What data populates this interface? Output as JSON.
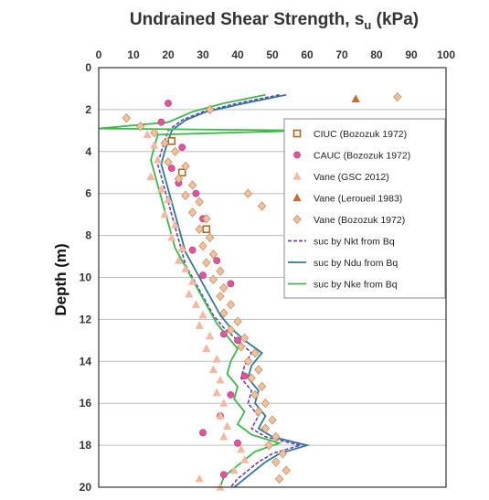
{
  "chart_data": {
    "type": "scatter",
    "title": "Undrained Shear Strength, s",
    "title_sub": "u",
    "title_unit": " (kPa)",
    "ylabel": "Depth (m)",
    "x_ticks": [
      0,
      10,
      20,
      30,
      40,
      50,
      60,
      70,
      80,
      90,
      100
    ],
    "y_ticks": [
      0,
      2,
      4,
      6,
      8,
      10,
      12,
      14,
      16,
      18,
      20
    ],
    "xlim": [
      0,
      100
    ],
    "ylim": [
      0,
      20
    ],
    "y_inverted": true,
    "x_axis_position": "top",
    "grid": "horizontal",
    "legend_position": "right",
    "series": [
      {
        "name": "CIUC (Bozozuk 1972)",
        "marker": "square-open",
        "color": "#b5651d",
        "points": [
          [
            21,
            3.5
          ],
          [
            24,
            5.0
          ],
          [
            31,
            7.7
          ]
        ]
      },
      {
        "name": "CAUC (Bozozuk 1972)",
        "marker": "circle",
        "color": "#e0559a",
        "points": [
          [
            20,
            1.7
          ],
          [
            18,
            2.6
          ],
          [
            24,
            3.8
          ],
          [
            21,
            4.8
          ],
          [
            23,
            5.5
          ],
          [
            28,
            6.0
          ],
          [
            30,
            7.2
          ],
          [
            27,
            8.7
          ],
          [
            34,
            9.2
          ],
          [
            30,
            9.9
          ],
          [
            38,
            10.3
          ],
          [
            36,
            12.7
          ],
          [
            40,
            13.0
          ],
          [
            38,
            15.6
          ],
          [
            42,
            14.7
          ],
          [
            35,
            16.6
          ],
          [
            30,
            17.4
          ],
          [
            40,
            17.9
          ],
          [
            36,
            19.4
          ]
        ]
      },
      {
        "name": "Vane (GSC 2012)",
        "marker": "triangle",
        "color": "#f5b8a0",
        "points": [
          [
            14,
            3.2
          ],
          [
            16,
            3.7
          ],
          [
            17,
            4.4
          ],
          [
            15,
            5.2
          ],
          [
            18,
            5.8
          ],
          [
            20,
            6.3
          ],
          [
            19,
            7.0
          ],
          [
            22,
            7.5
          ],
          [
            21,
            8.1
          ],
          [
            24,
            8.6
          ],
          [
            23,
            9.2
          ],
          [
            25,
            9.6
          ],
          [
            27,
            10.2
          ],
          [
            26,
            10.8
          ],
          [
            28,
            11.3
          ],
          [
            30,
            11.8
          ],
          [
            29,
            12.3
          ],
          [
            32,
            12.8
          ],
          [
            31,
            13.4
          ],
          [
            34,
            13.9
          ],
          [
            33,
            14.4
          ],
          [
            35,
            14.9
          ],
          [
            34,
            15.5
          ],
          [
            36,
            16.0
          ],
          [
            35,
            16.6
          ],
          [
            37,
            17.1
          ],
          [
            36,
            17.6
          ],
          [
            41,
            18.2
          ],
          [
            42,
            18.7
          ],
          [
            39,
            19.2
          ],
          [
            29,
            19.6
          ],
          [
            35,
            20.0
          ]
        ]
      },
      {
        "name": "Vane (Leroueil 1983)",
        "marker": "triangle",
        "color": "#c96b2a",
        "points": [
          [
            74,
            1.5
          ]
        ]
      },
      {
        "name": "Vane (Bozozuk 1972)",
        "marker": "diamond",
        "color": "#f2c19a",
        "points": [
          [
            86,
            1.4
          ],
          [
            32,
            2.0
          ],
          [
            8,
            2.4
          ],
          [
            12,
            2.8
          ],
          [
            16,
            3.1
          ],
          [
            19,
            3.6
          ],
          [
            22,
            4.0
          ],
          [
            20,
            4.5
          ],
          [
            25,
            4.7
          ],
          [
            23,
            5.3
          ],
          [
            27,
            5.6
          ],
          [
            25,
            6.1
          ],
          [
            29,
            6.4
          ],
          [
            27,
            6.9
          ],
          [
            31,
            7.2
          ],
          [
            29,
            7.7
          ],
          [
            32,
            8.1
          ],
          [
            30,
            8.5
          ],
          [
            33,
            8.9
          ],
          [
            31,
            9.3
          ],
          [
            35,
            9.7
          ],
          [
            33,
            10.1
          ],
          [
            36,
            10.5
          ],
          [
            35,
            10.9
          ],
          [
            38,
            11.3
          ],
          [
            36,
            11.7
          ],
          [
            40,
            12.1
          ],
          [
            38,
            12.5
          ],
          [
            42,
            12.9
          ],
          [
            41,
            13.3
          ],
          [
            45,
            13.6
          ],
          [
            43,
            14.0
          ],
          [
            46,
            14.4
          ],
          [
            44,
            14.8
          ],
          [
            47,
            15.2
          ],
          [
            45,
            15.6
          ],
          [
            48,
            16.0
          ],
          [
            46,
            16.4
          ],
          [
            50,
            16.8
          ],
          [
            48,
            17.2
          ],
          [
            51,
            17.6
          ],
          [
            49,
            18.0
          ],
          [
            53,
            18.4
          ],
          [
            51,
            18.8
          ],
          [
            54,
            19.2
          ],
          [
            52,
            19.6
          ],
          [
            43,
            6.0
          ],
          [
            47,
            6.6
          ]
        ]
      },
      {
        "name": "suc by Nkt from Bq",
        "line": "dashed",
        "color": "#6a3fb5",
        "points": [
          [
            52,
            1.3
          ],
          [
            40,
            1.7
          ],
          [
            30,
            2.1
          ],
          [
            24,
            2.5
          ],
          [
            20,
            3.0
          ],
          [
            19,
            3.5
          ],
          [
            18,
            4.0
          ],
          [
            17,
            4.6
          ],
          [
            18,
            5.2
          ],
          [
            19,
            5.8
          ],
          [
            20,
            6.4
          ],
          [
            21,
            7.0
          ],
          [
            22,
            7.6
          ],
          [
            23,
            8.2
          ],
          [
            24,
            8.8
          ],
          [
            25,
            9.4
          ],
          [
            27,
            10.0
          ],
          [
            29,
            10.6
          ],
          [
            31,
            11.2
          ],
          [
            33,
            11.8
          ],
          [
            36,
            12.4
          ],
          [
            40,
            13.0
          ],
          [
            44,
            13.6
          ],
          [
            42,
            14.2
          ],
          [
            41,
            14.8
          ],
          [
            44,
            15.4
          ],
          [
            43,
            16.0
          ],
          [
            46,
            16.6
          ],
          [
            44,
            17.2
          ],
          [
            48,
            17.6
          ],
          [
            58,
            18.0
          ],
          [
            50,
            18.4
          ],
          [
            46,
            18.8
          ],
          [
            43,
            19.2
          ],
          [
            40,
            19.6
          ],
          [
            38,
            20.0
          ]
        ]
      },
      {
        "name": "suc by Ndu from Bq",
        "line": "solid",
        "color": "#2f7a9a",
        "points": [
          [
            54,
            1.3
          ],
          [
            42,
            1.7
          ],
          [
            31,
            2.1
          ],
          [
            25,
            2.5
          ],
          [
            21,
            3.0
          ],
          [
            20,
            3.5
          ],
          [
            19,
            4.0
          ],
          [
            18,
            4.6
          ],
          [
            19,
            5.2
          ],
          [
            20,
            5.8
          ],
          [
            21,
            6.4
          ],
          [
            22,
            7.0
          ],
          [
            23,
            7.6
          ],
          [
            24,
            8.2
          ],
          [
            25,
            8.8
          ],
          [
            27,
            9.4
          ],
          [
            29,
            10.0
          ],
          [
            31,
            10.6
          ],
          [
            33,
            11.2
          ],
          [
            35,
            11.8
          ],
          [
            38,
            12.4
          ],
          [
            42,
            13.0
          ],
          [
            47,
            13.6
          ],
          [
            44,
            14.2
          ],
          [
            43,
            14.8
          ],
          [
            46,
            15.4
          ],
          [
            45,
            16.0
          ],
          [
            48,
            16.6
          ],
          [
            46,
            17.2
          ],
          [
            50,
            17.6
          ],
          [
            60,
            18.0
          ],
          [
            52,
            18.4
          ],
          [
            48,
            18.8
          ],
          [
            45,
            19.2
          ],
          [
            42,
            19.6
          ],
          [
            39,
            20.0
          ]
        ]
      },
      {
        "name": "suc by Nke from Bq",
        "line": "solid",
        "color": "#3cb84a",
        "points": [
          [
            48,
            1.3
          ],
          [
            36,
            1.7
          ],
          [
            27,
            2.1
          ],
          [
            20,
            2.6
          ],
          [
            0,
            2.9
          ],
          [
            60,
            3.0
          ],
          [
            17,
            3.2
          ],
          [
            16,
            3.8
          ],
          [
            15,
            4.4
          ],
          [
            16,
            5.0
          ],
          [
            17,
            5.6
          ],
          [
            18,
            6.2
          ],
          [
            19,
            6.8
          ],
          [
            20,
            7.4
          ],
          [
            21,
            8.0
          ],
          [
            22,
            8.6
          ],
          [
            24,
            9.2
          ],
          [
            26,
            9.8
          ],
          [
            28,
            10.4
          ],
          [
            30,
            11.0
          ],
          [
            32,
            11.6
          ],
          [
            34,
            12.2
          ],
          [
            37,
            12.8
          ],
          [
            40,
            13.4
          ],
          [
            38,
            14.0
          ],
          [
            37,
            14.6
          ],
          [
            40,
            15.2
          ],
          [
            39,
            15.8
          ],
          [
            42,
            16.4
          ],
          [
            40,
            17.0
          ],
          [
            44,
            17.5
          ],
          [
            52,
            17.9
          ],
          [
            45,
            18.3
          ],
          [
            42,
            18.7
          ],
          [
            39,
            19.1
          ],
          [
            36,
            19.5
          ],
          [
            35,
            20.0
          ]
        ]
      }
    ]
  }
}
